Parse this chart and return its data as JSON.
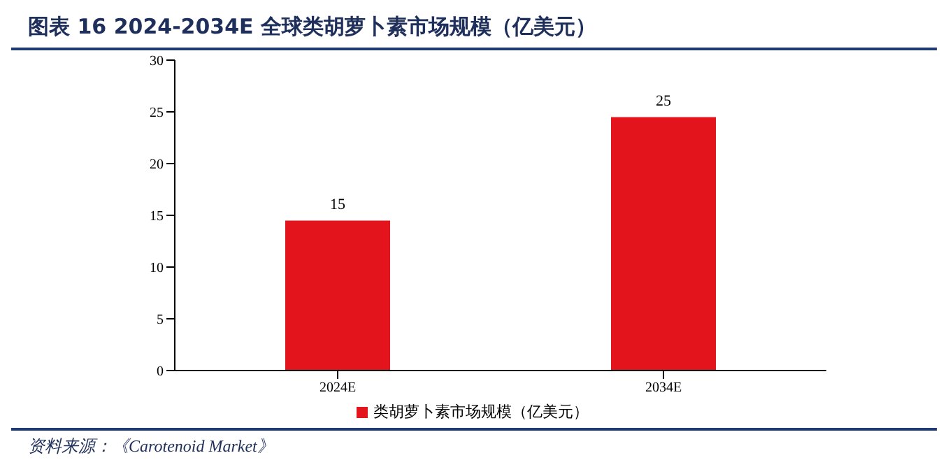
{
  "chart_data": {
    "type": "bar",
    "title": "图表 16 2024-2034E 全球类胡萝卜素市场规模（亿美元）",
    "categories": [
      "2024E",
      "2034E"
    ],
    "series": [
      {
        "name": "类胡萝卜素市场规模（亿美元）",
        "color": "#e3141c",
        "values": [
          14.5,
          24.5
        ],
        "value_labels": [
          "15",
          "25"
        ]
      }
    ],
    "ylim": [
      0,
      30
    ],
    "yticks": [
      0,
      5,
      10,
      15,
      20,
      25,
      30
    ],
    "grid": false,
    "legend": "bottom",
    "annotations": [
      "资料来源：《Carotenoid Market》"
    ]
  }
}
